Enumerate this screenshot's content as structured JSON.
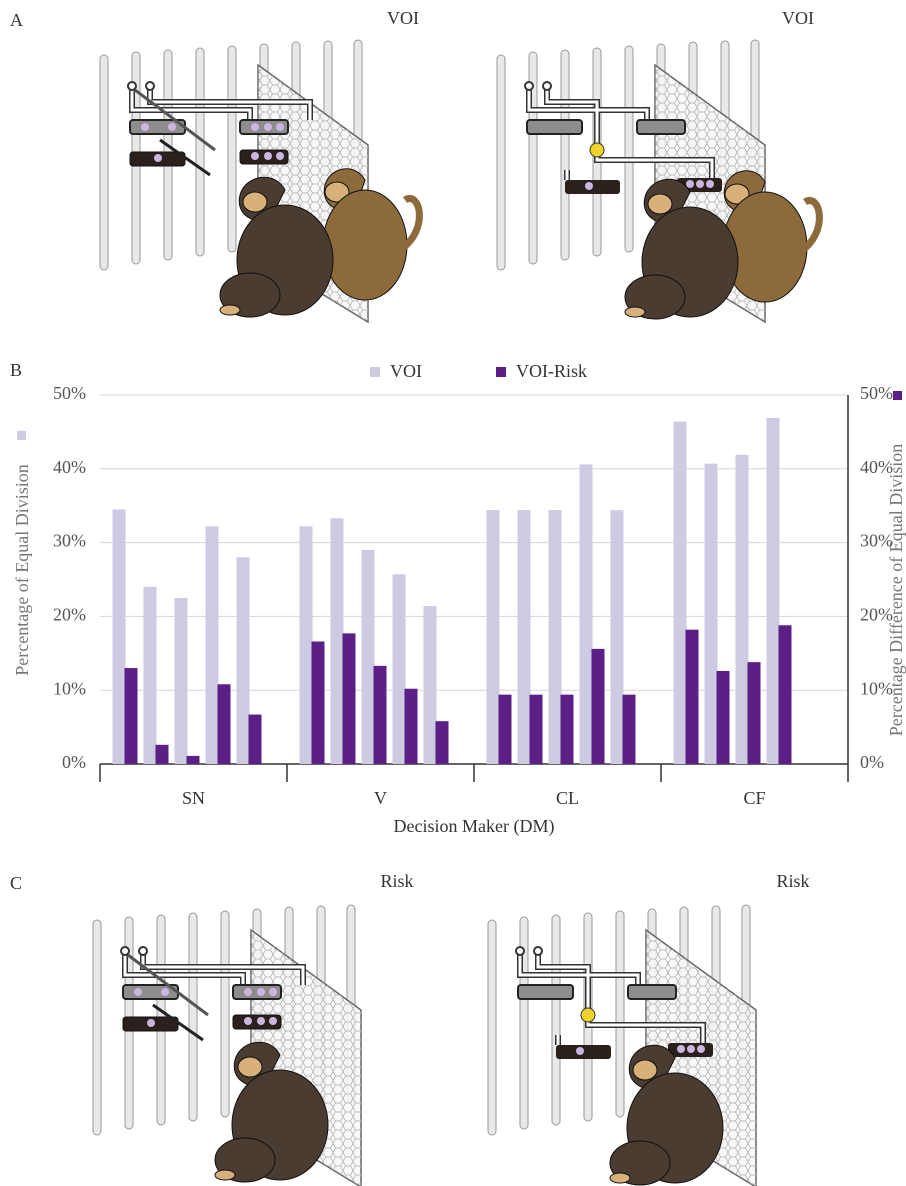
{
  "panels": {
    "a": {
      "label": "A",
      "titles": [
        "VOI",
        "VOI"
      ]
    },
    "b": {
      "label": "B"
    },
    "c": {
      "label": "C",
      "titles": [
        "Risk",
        "Risk"
      ]
    }
  },
  "chart_data": {
    "type": "bar",
    "xlabel": "Decision Maker (DM)",
    "ylabel": "Percentage of Equal Division",
    "y2label": "Percentage Difference of Equal Division",
    "categories": [
      "SN",
      "V",
      "CL",
      "CF"
    ],
    "series": [
      {
        "name": "VOI",
        "color": "#cdcbe2",
        "values": [
          [
            34.5,
            24,
            22.5,
            32.2,
            28
          ],
          [
            32.2,
            33.3,
            29,
            25.7,
            21.4
          ],
          [
            34.4,
            34.4,
            34.4,
            40.6,
            34.4
          ],
          [
            46.4,
            40.7,
            41.9,
            46.9
          ]
        ]
      },
      {
        "name": "VOI-Risk",
        "color": "#5b1f86",
        "axis": "y2",
        "values": [
          [
            13,
            2.6,
            1.1,
            10.8,
            6.7
          ],
          [
            16.6,
            17.7,
            13.3,
            10.2,
            5.8
          ],
          [
            9.4,
            9.4,
            9.4,
            15.6,
            9.4
          ],
          [
            18.2,
            12.6,
            13.8,
            18.8
          ]
        ]
      }
    ],
    "ylim": [
      0,
      50
    ],
    "yticks": [
      {
        "value": 0,
        "label": "0%"
      },
      {
        "value": 10,
        "label": "10%"
      },
      {
        "value": 20,
        "label": "20%"
      },
      {
        "value": 30,
        "label": "30%"
      },
      {
        "value": 40,
        "label": "40%"
      },
      {
        "value": 50,
        "label": "50%"
      }
    ],
    "y2lim": [
      0,
      50
    ],
    "y2ticks": [
      {
        "value": 0,
        "label": "0%"
      },
      {
        "value": 10,
        "label": "10%"
      },
      {
        "value": 20,
        "label": "20%"
      },
      {
        "value": 30,
        "label": "30%"
      },
      {
        "value": 40,
        "label": "40%"
      },
      {
        "value": 50,
        "label": "50%"
      }
    ],
    "grid": true
  }
}
